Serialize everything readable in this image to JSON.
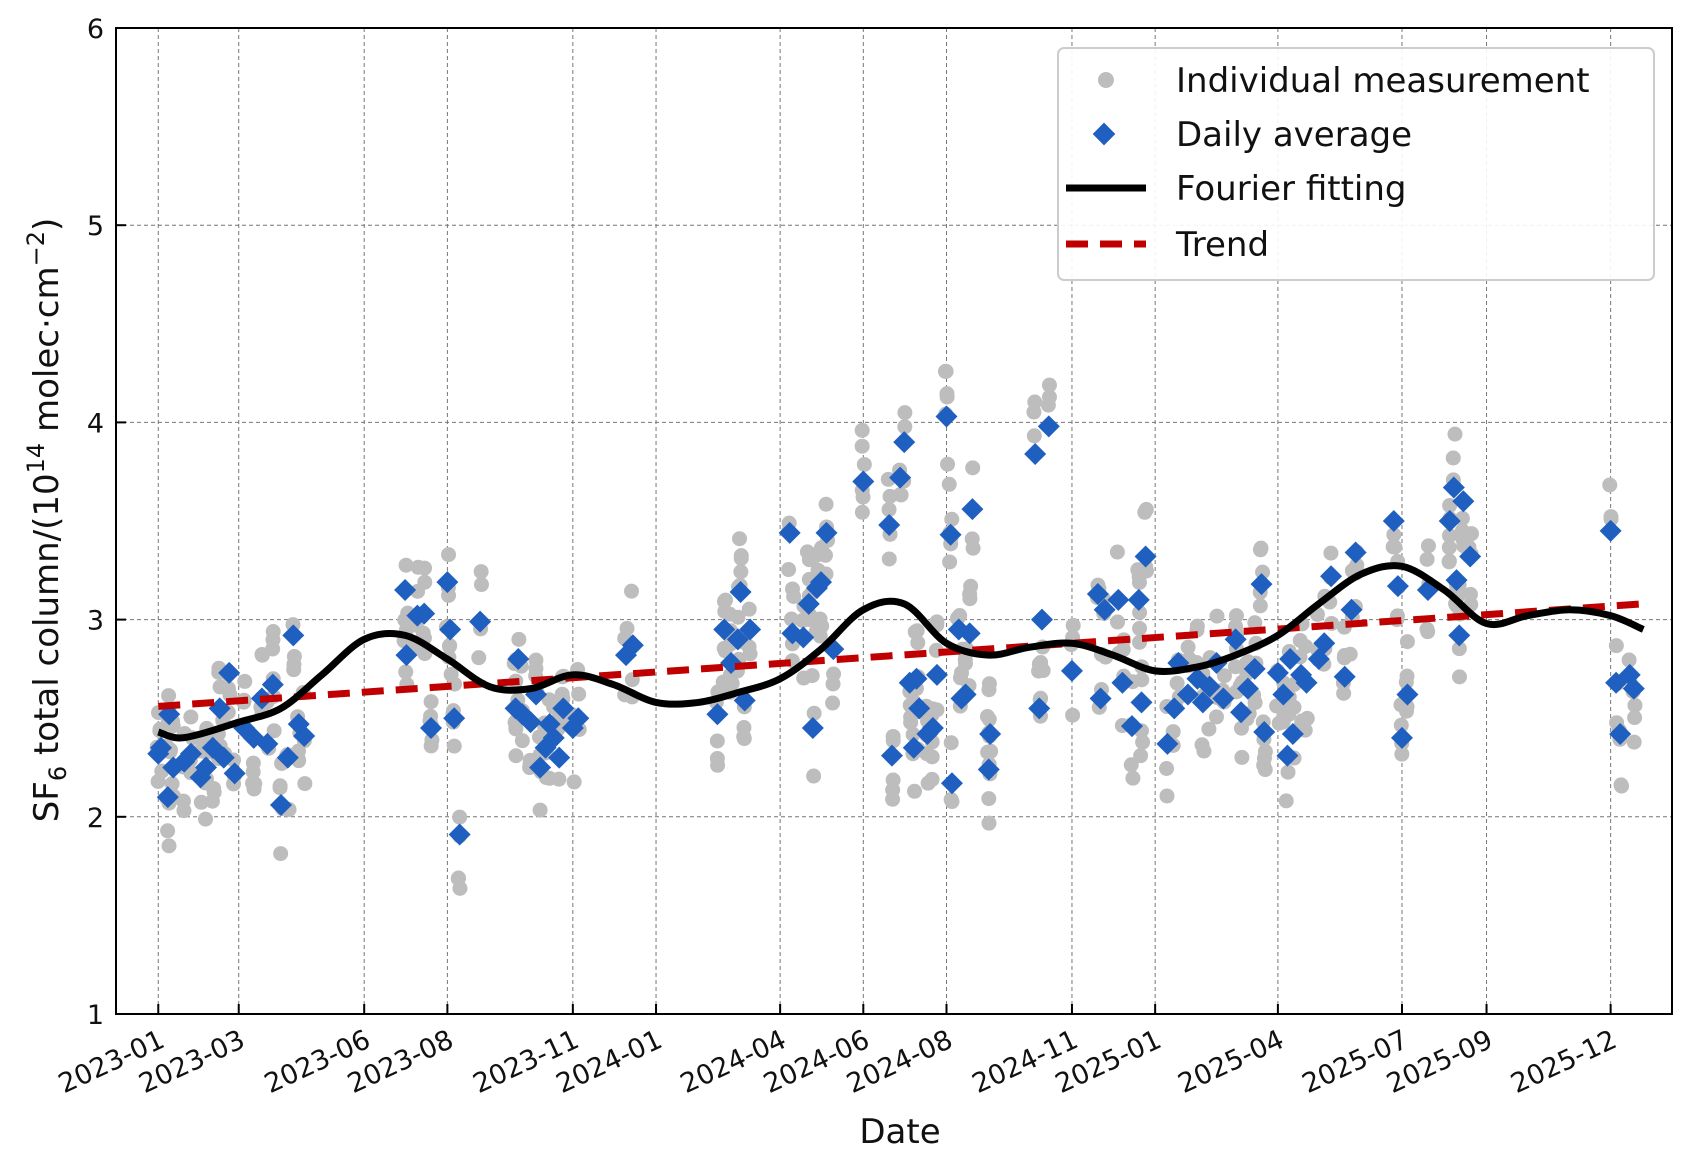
{
  "chart_data": {
    "type": "scatter",
    "xlabel": "Date",
    "ylabel_parts": {
      "main": "SF",
      "sub": "6",
      "rest": " total column/(10",
      "sup": "14",
      "unit": " molec·cm",
      "unit_sup": "−2",
      "close": ")"
    },
    "ylim": [
      1,
      6
    ],
    "xlim": [
      "2022-12-01",
      "2026-01-15"
    ],
    "yticks": [
      1,
      2,
      3,
      4,
      5,
      6
    ],
    "xticks": [
      "2023-01",
      "2023-03",
      "2023-06",
      "2023-08",
      "2023-11",
      "2024-01",
      "2024-04",
      "2024-06",
      "2024-08",
      "2024-11",
      "2025-01",
      "2025-04",
      "2025-07",
      "2025-09",
      "2025-12"
    ],
    "grid": true,
    "legend": {
      "position": "top-right",
      "entries": [
        {
          "label": "Individual measurement",
          "color": "#bdbdbd",
          "marker": "circle"
        },
        {
          "label": "Daily average",
          "color": "#1f5fbf",
          "marker": "diamond"
        },
        {
          "label": "Fourier fitting",
          "color": "#000000",
          "marker": "line"
        },
        {
          "label": "Trend",
          "color": "#c00000",
          "marker": "dashed-line"
        }
      ]
    },
    "series": [
      {
        "name": "Daily average",
        "color": "#1f5fbf",
        "points": [
          [
            "2023-01-01",
            2.32
          ],
          [
            "2023-01-03",
            2.35
          ],
          [
            "2023-01-08",
            2.1
          ],
          [
            "2023-01-09",
            2.52
          ],
          [
            "2023-01-12",
            2.25
          ],
          [
            "2023-01-20",
            2.28
          ],
          [
            "2023-01-25",
            2.32
          ],
          [
            "2023-02-01",
            2.2
          ],
          [
            "2023-02-05",
            2.25
          ],
          [
            "2023-02-10",
            2.35
          ],
          [
            "2023-02-15",
            2.55
          ],
          [
            "2023-02-18",
            2.3
          ],
          [
            "2023-02-22",
            2.73
          ],
          [
            "2023-02-26",
            2.22
          ],
          [
            "2023-03-05",
            2.45
          ],
          [
            "2023-03-12",
            2.4
          ],
          [
            "2023-03-18",
            2.6
          ],
          [
            "2023-03-22",
            2.37
          ],
          [
            "2023-03-26",
            2.67
          ],
          [
            "2023-04-01",
            2.06
          ],
          [
            "2023-04-06",
            2.3
          ],
          [
            "2023-04-10",
            2.92
          ],
          [
            "2023-04-14",
            2.47
          ],
          [
            "2023-04-18",
            2.41
          ],
          [
            "2023-07-01",
            3.15
          ],
          [
            "2023-07-02",
            2.82
          ],
          [
            "2023-07-10",
            3.02
          ],
          [
            "2023-07-15",
            3.03
          ],
          [
            "2023-07-20",
            2.45
          ],
          [
            "2023-08-01",
            3.19
          ],
          [
            "2023-08-03",
            2.95
          ],
          [
            "2023-08-06",
            2.5
          ],
          [
            "2023-08-10",
            1.91
          ],
          [
            "2023-08-25",
            2.99
          ],
          [
            "2023-09-20",
            2.55
          ],
          [
            "2023-09-22",
            2.8
          ],
          [
            "2023-09-25",
            2.52
          ],
          [
            "2023-10-01",
            2.48
          ],
          [
            "2023-10-05",
            2.62
          ],
          [
            "2023-10-08",
            2.25
          ],
          [
            "2023-10-12",
            2.35
          ],
          [
            "2023-10-15",
            2.47
          ],
          [
            "2023-10-18",
            2.4
          ],
          [
            "2023-10-22",
            2.3
          ],
          [
            "2023-10-25",
            2.55
          ],
          [
            "2023-11-01",
            2.45
          ],
          [
            "2023-11-05",
            2.5
          ],
          [
            "2023-12-10",
            2.82
          ],
          [
            "2023-12-15",
            2.87
          ],
          [
            "2024-02-15",
            2.52
          ],
          [
            "2024-02-20",
            2.95
          ],
          [
            "2024-02-25",
            2.78
          ],
          [
            "2024-03-01",
            2.9
          ],
          [
            "2024-03-03",
            3.14
          ],
          [
            "2024-03-06",
            2.59
          ],
          [
            "2024-03-10",
            2.95
          ],
          [
            "2024-04-08",
            3.44
          ],
          [
            "2024-04-10",
            2.93
          ],
          [
            "2024-04-18",
            2.91
          ],
          [
            "2024-04-22",
            3.08
          ],
          [
            "2024-04-25",
            2.45
          ],
          [
            "2024-04-28",
            3.16
          ],
          [
            "2024-05-01",
            3.19
          ],
          [
            "2024-05-05",
            3.44
          ],
          [
            "2024-05-10",
            2.85
          ],
          [
            "2024-06-01",
            3.7
          ],
          [
            "2024-06-20",
            3.48
          ],
          [
            "2024-06-22",
            2.31
          ],
          [
            "2024-06-28",
            3.72
          ],
          [
            "2024-07-01",
            3.9
          ],
          [
            "2024-07-05",
            2.68
          ],
          [
            "2024-07-08",
            2.35
          ],
          [
            "2024-07-10",
            2.7
          ],
          [
            "2024-07-12",
            2.55
          ],
          [
            "2024-07-18",
            2.42
          ],
          [
            "2024-07-22",
            2.45
          ],
          [
            "2024-07-25",
            2.72
          ],
          [
            "2024-08-01",
            4.03
          ],
          [
            "2024-08-05",
            2.17
          ],
          [
            "2024-08-04",
            3.43
          ],
          [
            "2024-08-10",
            2.95
          ],
          [
            "2024-08-12",
            2.6
          ],
          [
            "2024-08-15",
            2.62
          ],
          [
            "2024-08-20",
            3.56
          ],
          [
            "2024-08-18",
            2.93
          ],
          [
            "2024-09-01",
            2.24
          ],
          [
            "2024-09-02",
            2.42
          ],
          [
            "2024-10-05",
            3.84
          ],
          [
            "2024-10-08",
            2.55
          ],
          [
            "2024-10-10",
            3.0
          ],
          [
            "2024-10-15",
            3.98
          ],
          [
            "2024-11-01",
            2.74
          ],
          [
            "2024-11-20",
            3.13
          ],
          [
            "2024-11-22",
            2.6
          ],
          [
            "2024-11-25",
            3.05
          ],
          [
            "2024-12-05",
            3.1
          ],
          [
            "2024-12-08",
            2.68
          ],
          [
            "2024-12-15",
            2.46
          ],
          [
            "2024-12-20",
            3.1
          ],
          [
            "2024-12-25",
            3.32
          ],
          [
            "2024-12-22",
            2.58
          ],
          [
            "2025-01-10",
            2.37
          ],
          [
            "2025-01-15",
            2.55
          ],
          [
            "2025-01-18",
            2.78
          ],
          [
            "2025-01-25",
            2.62
          ],
          [
            "2025-02-01",
            2.7
          ],
          [
            "2025-02-05",
            2.58
          ],
          [
            "2025-02-10",
            2.66
          ],
          [
            "2025-02-15",
            2.78
          ],
          [
            "2025-02-20",
            2.6
          ],
          [
            "2025-03-01",
            2.9
          ],
          [
            "2025-03-05",
            2.53
          ],
          [
            "2025-03-10",
            2.65
          ],
          [
            "2025-03-15",
            2.75
          ],
          [
            "2025-03-20",
            3.18
          ],
          [
            "2025-03-22",
            2.43
          ],
          [
            "2025-04-01",
            2.73
          ],
          [
            "2025-04-05",
            2.62
          ],
          [
            "2025-04-08",
            2.31
          ],
          [
            "2025-04-10",
            2.8
          ],
          [
            "2025-04-12",
            2.42
          ],
          [
            "2025-04-18",
            2.72
          ],
          [
            "2025-04-22",
            2.68
          ],
          [
            "2025-05-01",
            2.8
          ],
          [
            "2025-05-05",
            2.88
          ],
          [
            "2025-05-10",
            3.22
          ],
          [
            "2025-05-20",
            2.71
          ],
          [
            "2025-05-25",
            3.05
          ],
          [
            "2025-05-28",
            3.34
          ],
          [
            "2025-06-25",
            3.5
          ],
          [
            "2025-06-28",
            3.17
          ],
          [
            "2025-07-01",
            2.4
          ],
          [
            "2025-07-05",
            2.62
          ],
          [
            "2025-07-20",
            3.15
          ],
          [
            "2025-08-05",
            3.5
          ],
          [
            "2025-08-08",
            3.67
          ],
          [
            "2025-08-10",
            3.2
          ],
          [
            "2025-08-12",
            2.92
          ],
          [
            "2025-08-15",
            3.6
          ],
          [
            "2025-08-20",
            3.32
          ],
          [
            "2025-12-01",
            3.45
          ],
          [
            "2025-12-05",
            2.68
          ],
          [
            "2025-12-08",
            2.42
          ],
          [
            "2025-12-15",
            2.72
          ],
          [
            "2025-12-18",
            2.65
          ]
        ]
      },
      {
        "name": "Fourier fitting",
        "color": "#000000",
        "points": [
          [
            "2023-01-01",
            2.43
          ],
          [
            "2023-01-15",
            2.4
          ],
          [
            "2023-02-01",
            2.42
          ],
          [
            "2023-03-01",
            2.48
          ],
          [
            "2023-04-01",
            2.55
          ],
          [
            "2023-05-01",
            2.72
          ],
          [
            "2023-06-01",
            2.9
          ],
          [
            "2023-07-01",
            2.92
          ],
          [
            "2023-08-01",
            2.8
          ],
          [
            "2023-09-01",
            2.66
          ],
          [
            "2023-10-01",
            2.65
          ],
          [
            "2023-11-01",
            2.72
          ],
          [
            "2023-12-01",
            2.67
          ],
          [
            "2024-01-01",
            2.58
          ],
          [
            "2024-02-01",
            2.58
          ],
          [
            "2024-03-01",
            2.63
          ],
          [
            "2024-04-01",
            2.7
          ],
          [
            "2024-05-01",
            2.85
          ],
          [
            "2024-06-01",
            3.05
          ],
          [
            "2024-07-01",
            3.08
          ],
          [
            "2024-08-01",
            2.88
          ],
          [
            "2024-09-01",
            2.82
          ],
          [
            "2024-10-01",
            2.86
          ],
          [
            "2024-11-01",
            2.88
          ],
          [
            "2024-12-01",
            2.82
          ],
          [
            "2025-01-01",
            2.74
          ],
          [
            "2025-02-01",
            2.76
          ],
          [
            "2025-03-01",
            2.82
          ],
          [
            "2025-04-01",
            2.92
          ],
          [
            "2025-05-01",
            3.08
          ],
          [
            "2025-06-01",
            3.23
          ],
          [
            "2025-07-01",
            3.27
          ],
          [
            "2025-08-01",
            3.15
          ],
          [
            "2025-09-01",
            2.98
          ],
          [
            "2025-10-01",
            3.02
          ],
          [
            "2025-11-01",
            3.05
          ],
          [
            "2025-12-01",
            3.02
          ],
          [
            "2025-12-25",
            2.95
          ]
        ]
      },
      {
        "name": "Trend",
        "color": "#c00000",
        "points": [
          [
            "2023-01-01",
            2.56
          ],
          [
            "2025-12-25",
            3.08
          ]
        ]
      }
    ]
  }
}
